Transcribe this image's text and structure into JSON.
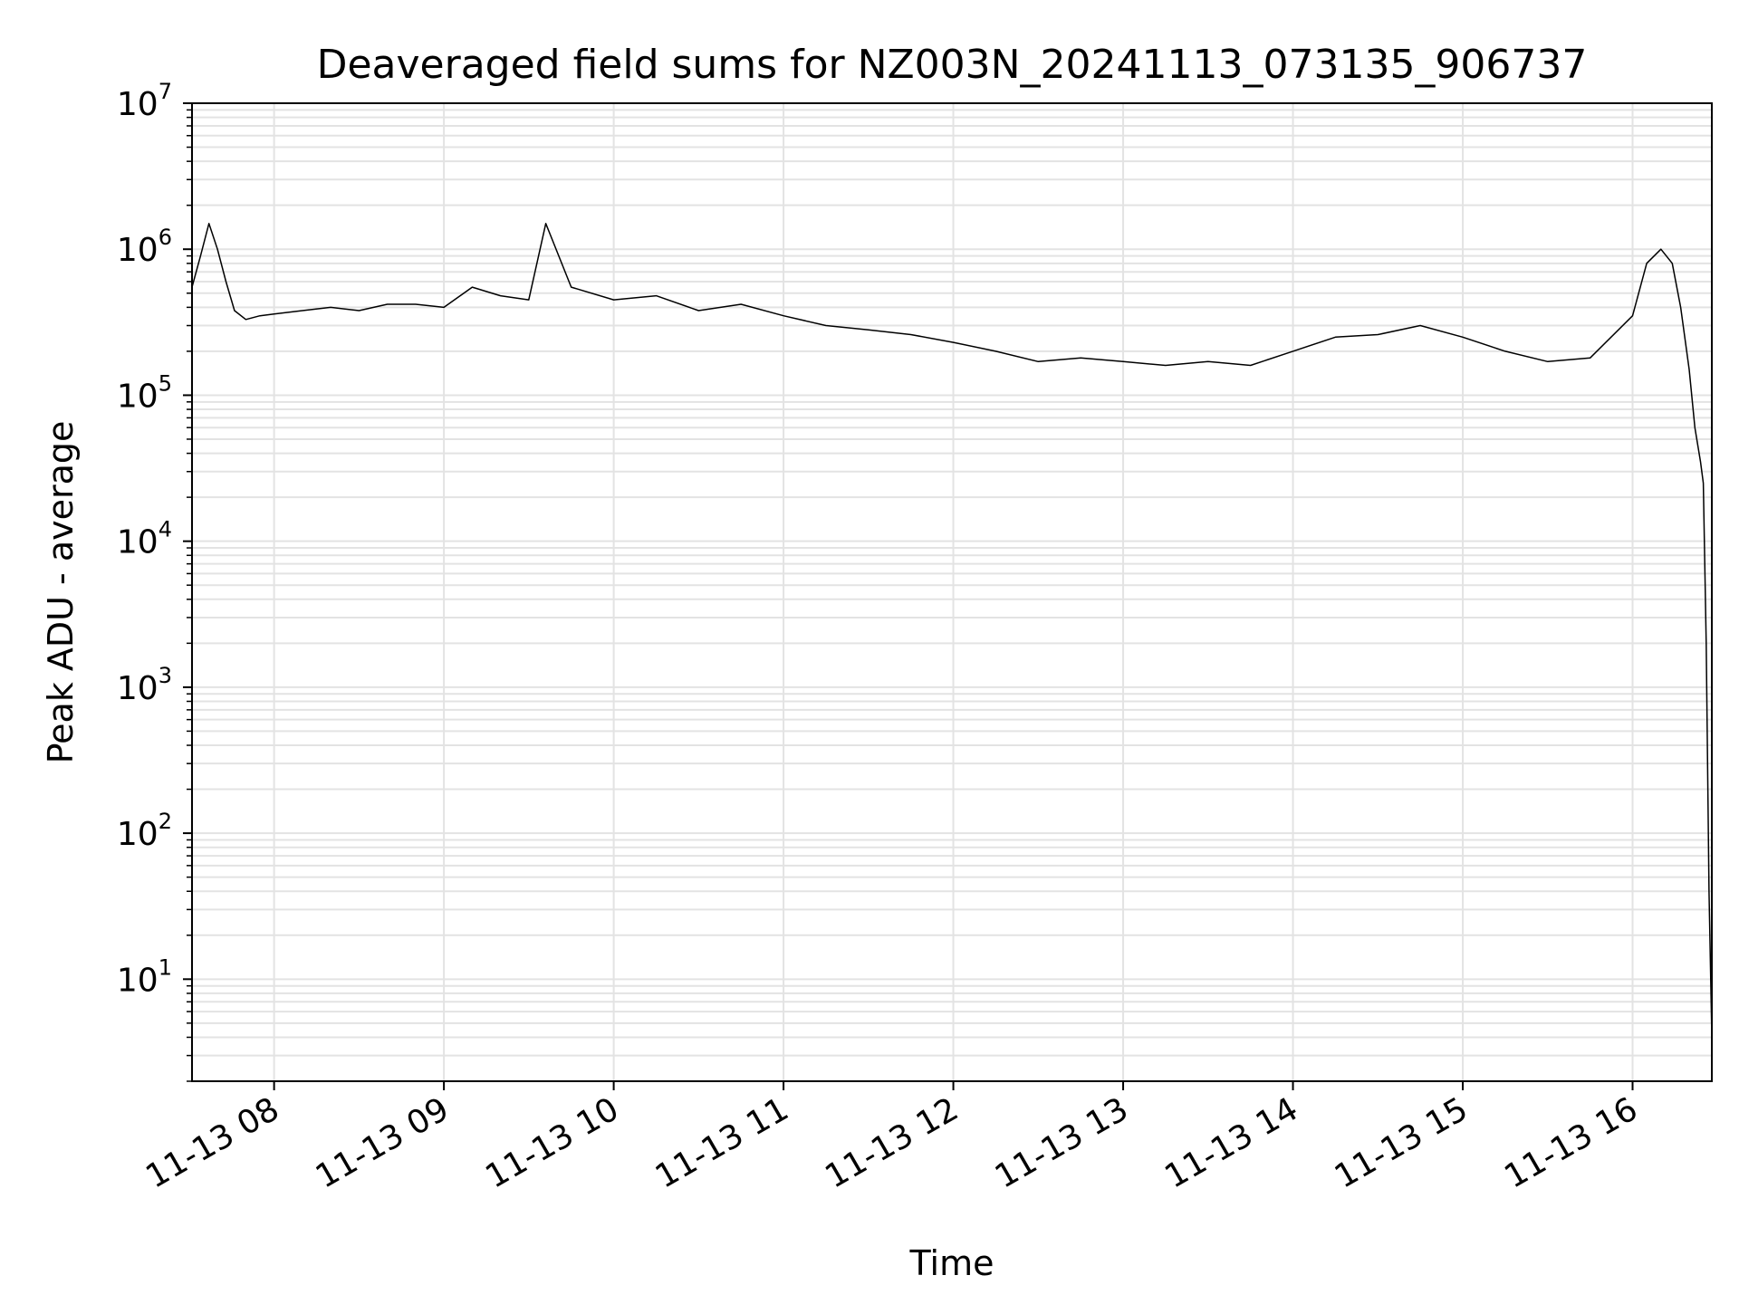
{
  "chart_data": {
    "type": "line",
    "title": "Deaveraged field sums for NZ003N_20241113_073135_906737",
    "xlabel": "Time",
    "ylabel": "Peak ADU - average",
    "y_scale": "log",
    "ylim": [
      2,
      10000000
    ],
    "xlim": [
      "2024-11-13 07:31",
      "2024-11-13 16:28"
    ],
    "grid": true,
    "line_color": "#000000",
    "grid_color": "#e3e3e3",
    "x_ticks": [
      {
        "value": "2024-11-13 08:00",
        "label": "11-13 08"
      },
      {
        "value": "2024-11-13 09:00",
        "label": "11-13 09"
      },
      {
        "value": "2024-11-13 10:00",
        "label": "11-13 10"
      },
      {
        "value": "2024-11-13 11:00",
        "label": "11-13 11"
      },
      {
        "value": "2024-11-13 12:00",
        "label": "11-13 12"
      },
      {
        "value": "2024-11-13 13:00",
        "label": "11-13 13"
      },
      {
        "value": "2024-11-13 14:00",
        "label": "11-13 14"
      },
      {
        "value": "2024-11-13 15:00",
        "label": "11-13 15"
      },
      {
        "value": "2024-11-13 16:00",
        "label": "11-13 16"
      }
    ],
    "y_ticks": [
      {
        "value": 10,
        "base": "10",
        "exp": "1"
      },
      {
        "value": 100,
        "base": "10",
        "exp": "2"
      },
      {
        "value": 1000,
        "base": "10",
        "exp": "3"
      },
      {
        "value": 10000,
        "base": "10",
        "exp": "4"
      },
      {
        "value": 100000,
        "base": "10",
        "exp": "5"
      },
      {
        "value": 1000000,
        "base": "10",
        "exp": "6"
      },
      {
        "value": 10000000,
        "base": "10",
        "exp": "7"
      }
    ],
    "series": [
      {
        "x": [
          "2024-11-13 07:31",
          "2024-11-13 07:34",
          "2024-11-13 07:37",
          "2024-11-13 07:40",
          "2024-11-13 07:43",
          "2024-11-13 07:46",
          "2024-11-13 07:50",
          "2024-11-13 07:55",
          "2024-11-13 08:00",
          "2024-11-13 08:10",
          "2024-11-13 08:20",
          "2024-11-13 08:30",
          "2024-11-13 08:40",
          "2024-11-13 08:50",
          "2024-11-13 09:00",
          "2024-11-13 09:10",
          "2024-11-13 09:20",
          "2024-11-13 09:30",
          "2024-11-13 09:36",
          "2024-11-13 09:45",
          "2024-11-13 10:00",
          "2024-11-13 10:15",
          "2024-11-13 10:30",
          "2024-11-13 10:45",
          "2024-11-13 11:00",
          "2024-11-13 11:15",
          "2024-11-13 11:30",
          "2024-11-13 11:45",
          "2024-11-13 12:00",
          "2024-11-13 12:15",
          "2024-11-13 12:30",
          "2024-11-13 12:45",
          "2024-11-13 13:00",
          "2024-11-13 13:15",
          "2024-11-13 13:30",
          "2024-11-13 13:45",
          "2024-11-13 14:00",
          "2024-11-13 14:15",
          "2024-11-13 14:30",
          "2024-11-13 14:45",
          "2024-11-13 15:00",
          "2024-11-13 15:15",
          "2024-11-13 15:30",
          "2024-11-13 15:45",
          "2024-11-13 16:00",
          "2024-11-13 16:05",
          "2024-11-13 16:10",
          "2024-11-13 16:14",
          "2024-11-13 16:17",
          "2024-11-13 16:20",
          "2024-11-13 16:22",
          "2024-11-13 16:24",
          "2024-11-13 16:25",
          "2024-11-13 16:26",
          "2024-11-13 16:27",
          "2024-11-13 16:28"
        ],
        "y": [
          550000,
          900000,
          1500000,
          1000000,
          600000,
          380000,
          330000,
          350000,
          360000,
          380000,
          400000,
          380000,
          420000,
          420000,
          400000,
          550000,
          480000,
          450000,
          1500000,
          550000,
          450000,
          480000,
          380000,
          420000,
          350000,
          300000,
          280000,
          260000,
          230000,
          200000,
          170000,
          180000,
          170000,
          160000,
          170000,
          160000,
          200000,
          250000,
          260000,
          300000,
          250000,
          200000,
          170000,
          180000,
          350000,
          800000,
          1000000,
          800000,
          400000,
          150000,
          60000,
          35000,
          25000,
          2000,
          40,
          4
        ]
      }
    ]
  }
}
